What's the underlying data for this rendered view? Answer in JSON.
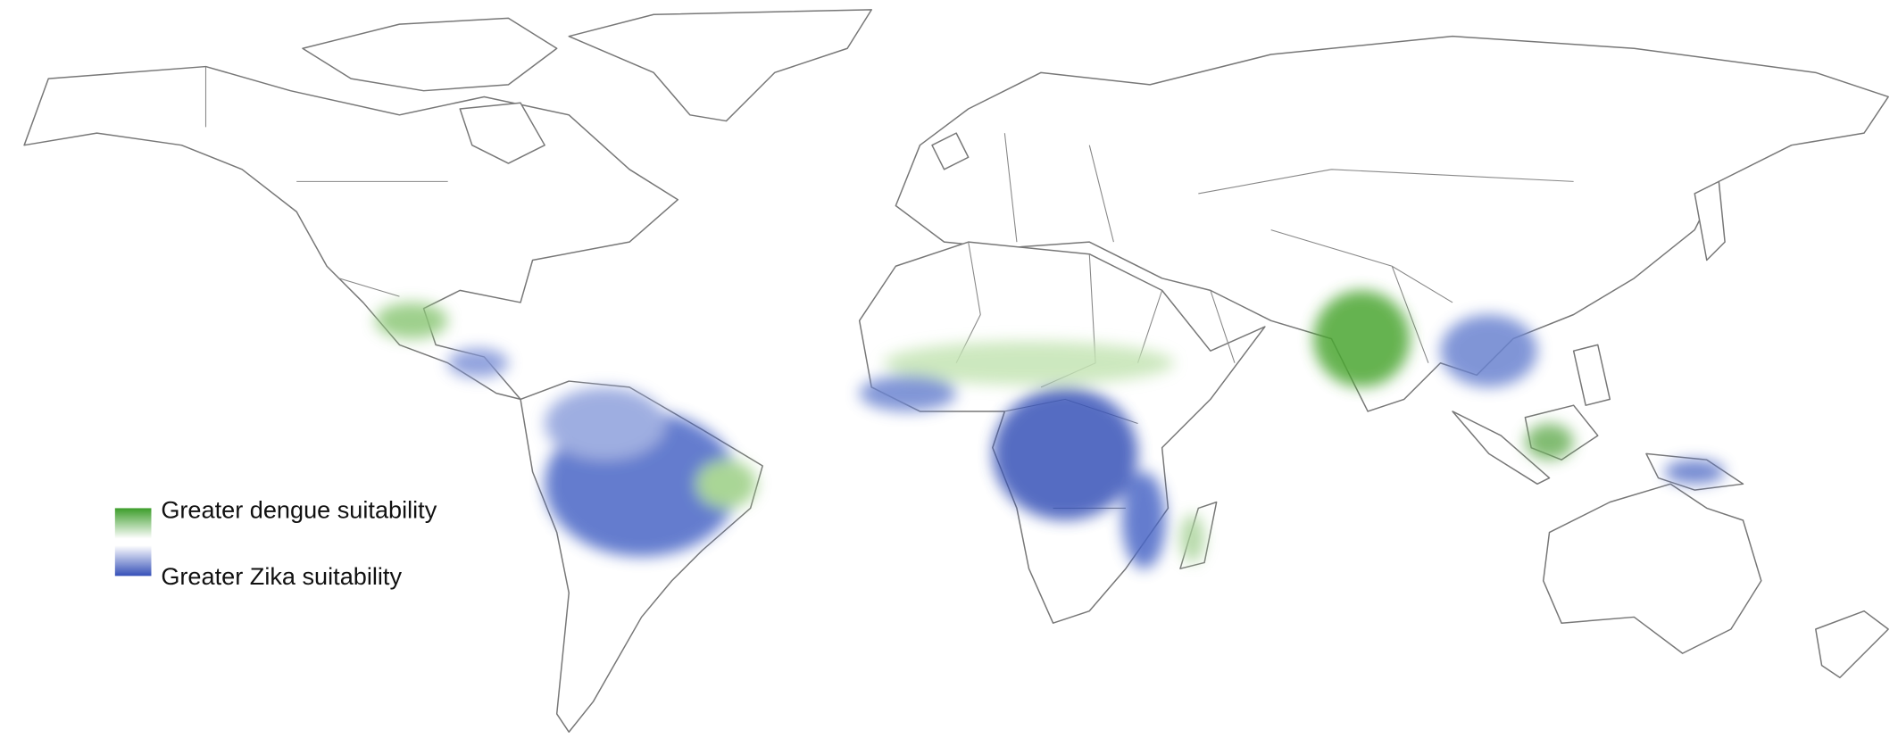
{
  "legend": {
    "items": [
      {
        "label": "Greater dengue suitability"
      },
      {
        "label": "Greater Zika suitability"
      }
    ]
  }
}
